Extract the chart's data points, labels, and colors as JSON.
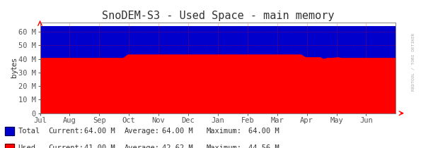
{
  "title": "SnoDEM-S3 - Used Space - main memory",
  "ylabel": "bytes",
  "background_color": "#ffffff",
  "plot_bg_color": "#ffffff",
  "grid_color": "#ff0000",
  "ylim": [
    0,
    67000000
  ],
  "yticks": [
    0,
    10000000,
    20000000,
    30000000,
    40000000,
    50000000,
    60000000
  ],
  "ytick_labels": [
    "0",
    "10 M",
    "20 M",
    "30 M",
    "40 M",
    "50 M",
    "60 M"
  ],
  "x_labels": [
    "Jul",
    "Aug",
    "Sep",
    "Oct",
    "Nov",
    "Dec",
    "Jan",
    "Feb",
    "Mar",
    "Apr",
    "May",
    "Jun"
  ],
  "total_color": "#0000cc",
  "used_color": "#ff0000",
  "total_value": 64000000,
  "sidebar_text": "RRDTOOL / TOBI OETIKER",
  "legend": [
    {
      "label": "Total",
      "color": "#0000cc",
      "current": "64.00 M",
      "average": "64.00 M",
      "maximum": "64.00 M"
    },
    {
      "label": "Used",
      "color": "#ff0000",
      "current": "41.00 M",
      "average": "42.62 M",
      "maximum": "44.56 M"
    }
  ],
  "n_points": 500,
  "title_fontsize": 11,
  "axis_fontsize": 7.5,
  "legend_fontsize": 7.5
}
